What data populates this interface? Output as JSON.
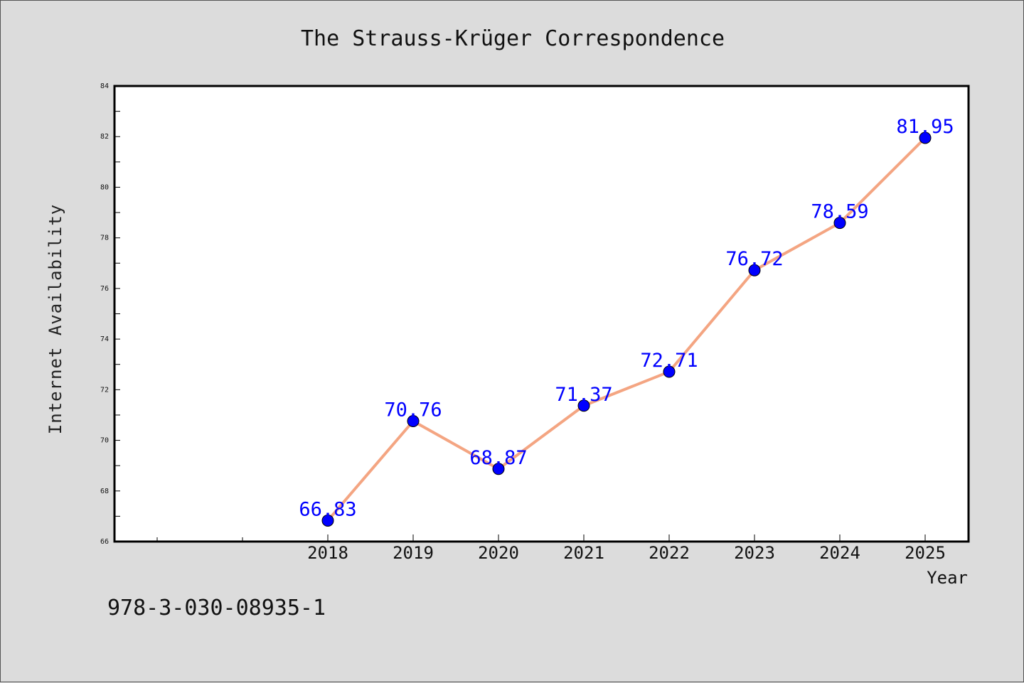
{
  "chart_data": {
    "type": "line",
    "title": "The Strauss-Krüger Correspondence",
    "xlabel": "Year",
    "ylabel": "Internet Availability",
    "categories": [
      "2018",
      "2019",
      "2020",
      "2021",
      "2022",
      "2023",
      "2024",
      "2025"
    ],
    "values": [
      66.83,
      70.76,
      68.87,
      71.37,
      72.71,
      76.72,
      78.59,
      81.95
    ],
    "data_labels": [
      "66.83",
      "70.76",
      "68.87",
      "71.37",
      "72.71",
      "76.72",
      "78.59",
      "81.95"
    ],
    "ylim": [
      66,
      84
    ],
    "yticks": [
      "66",
      "68",
      "70",
      "72",
      "74",
      "76",
      "78",
      "80",
      "82",
      "84"
    ],
    "grid": false,
    "line_color": "#f4a582",
    "marker_color": "#0000ff",
    "label_color": "#0000ff"
  },
  "footer": {
    "isbn": "978-3-030-08935-1"
  }
}
